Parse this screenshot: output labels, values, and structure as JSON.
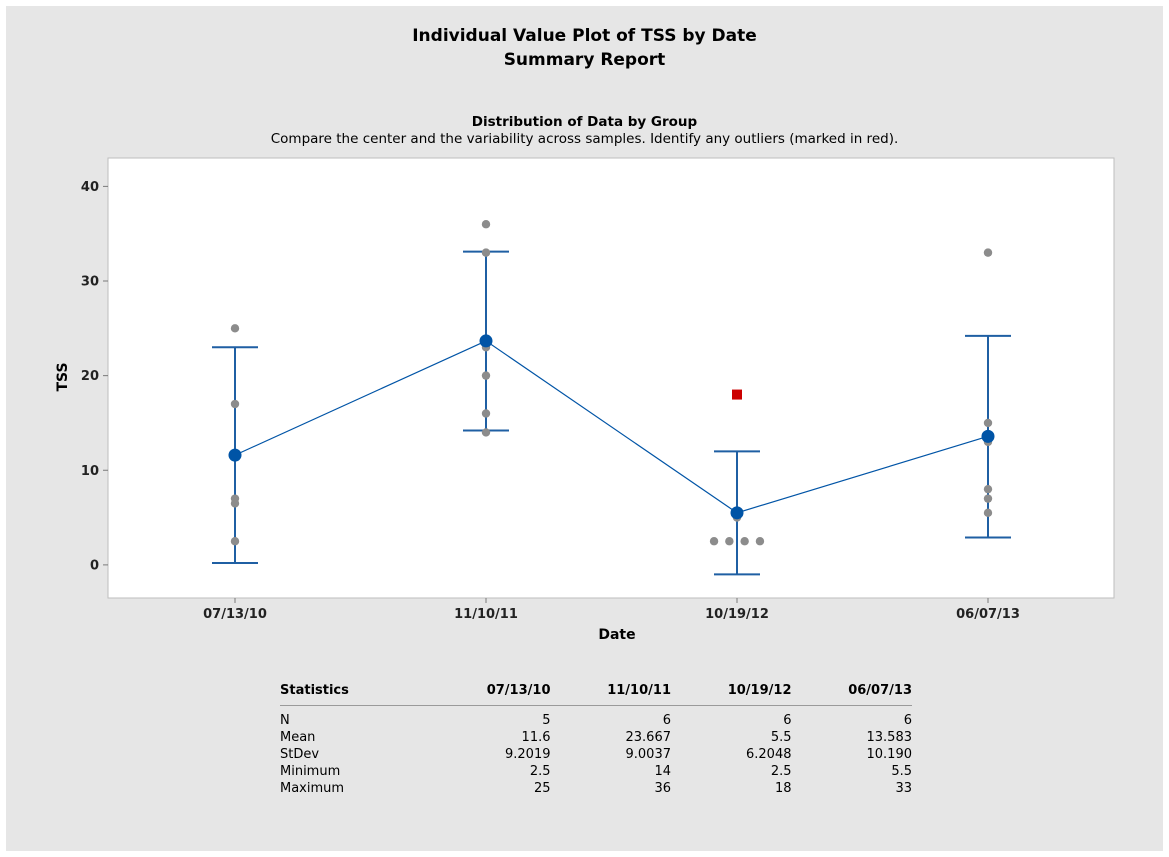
{
  "report": {
    "title": "Individual Value Plot of TSS by Date",
    "subtitle": "Summary Report",
    "section_title": "Distribution of Data by Group",
    "section_description": "Compare the center and the variability across samples. Identify any outliers (marked in red)."
  },
  "chart_data": {
    "type": "scatter",
    "title": "Distribution of Data by Group",
    "xlabel": "Date",
    "ylabel": "TSS",
    "categories": [
      "07/13/10",
      "11/10/11",
      "10/19/12",
      "06/07/13"
    ],
    "ylim": [
      -3.5,
      43
    ],
    "yticks": [
      0,
      10,
      20,
      30,
      40
    ],
    "grid": false,
    "groups": [
      {
        "category": "07/13/10",
        "points": [
          2.5,
          6.5,
          7,
          17,
          25
        ],
        "mean": 11.6,
        "interval": [
          0.2,
          23
        ],
        "outliers": []
      },
      {
        "category": "11/10/11",
        "points": [
          14,
          16,
          20,
          23,
          33,
          36
        ],
        "mean": 23.667,
        "interval": [
          14.2,
          33.1
        ],
        "outliers": []
      },
      {
        "category": "10/19/12",
        "points": [
          2.5,
          2.5,
          2.5,
          2.5,
          5
        ],
        "mean": 5.5,
        "interval": [
          -1,
          12
        ],
        "outliers": [
          18
        ]
      },
      {
        "category": "06/07/13",
        "points": [
          5.5,
          7,
          8,
          13,
          15,
          33
        ],
        "mean": 13.583,
        "interval": [
          2.9,
          24.2
        ],
        "outliers": []
      }
    ],
    "colors": {
      "point": "#8c8c8c",
      "mean": "#0054a6",
      "interval": "#1f5fa3",
      "outlier": "#cc0000"
    }
  },
  "statistics": {
    "header": [
      "Statistics",
      "07/13/10",
      "11/10/11",
      "10/19/12",
      "06/07/13"
    ],
    "rows": [
      [
        "N",
        "5",
        "6",
        "6",
        "6"
      ],
      [
        "Mean",
        "11.6",
        "23.667",
        "5.5",
        "13.583"
      ],
      [
        "StDev",
        "9.2019",
        "9.0037",
        "6.2048",
        "10.190"
      ],
      [
        "Minimum",
        "2.5",
        "14",
        "2.5",
        "5.5"
      ],
      [
        "Maximum",
        "25",
        "36",
        "18",
        "33"
      ]
    ]
  }
}
